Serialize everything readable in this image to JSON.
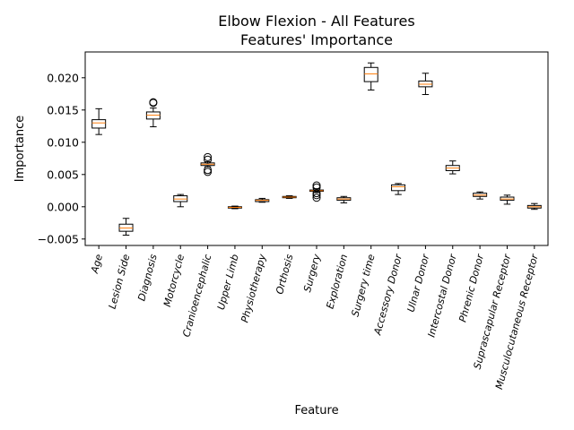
{
  "chart_data": {
    "type": "box",
    "title": "Elbow Flexion - All Features",
    "subtitle": "Features' Importance",
    "xlabel": "Feature",
    "ylabel": "Importance",
    "ylim": [
      -0.006,
      0.024
    ],
    "yticks": [
      -0.005,
      0.0,
      0.005,
      0.01,
      0.015,
      0.02
    ],
    "ytick_labels": [
      "−0.005",
      "0.000",
      "0.005",
      "0.010",
      "0.015",
      "0.020"
    ],
    "grid": false,
    "box_color": "#000000",
    "median_color": "#ff7f0e",
    "categories": [
      "Age",
      "Lesion Side",
      "Diagnosis",
      "Motorcycle",
      "Cranioencephalic",
      "Upper Limb",
      "Physiotherapy",
      "Orthosis",
      "Surgery",
      "Exploration",
      "Surgery time",
      "Accessory Donor",
      "Ulnar Donor",
      "Intercostal Donor",
      "Phrenic Donor",
      "Suprascapular Receptor",
      "Musculocutaneous Receptor"
    ],
    "boxes": [
      {
        "whisker_low": 0.0112,
        "q1": 0.0122,
        "median": 0.013,
        "q3": 0.0135,
        "whisker_high": 0.0152,
        "outliers": []
      },
      {
        "whisker_low": -0.0044,
        "q1": -0.0038,
        "median": -0.0033,
        "q3": -0.0027,
        "whisker_high": -0.0018,
        "outliers": []
      },
      {
        "whisker_low": 0.0124,
        "q1": 0.0136,
        "median": 0.0142,
        "q3": 0.0147,
        "whisker_high": 0.0153,
        "outliers": [
          0.0161,
          0.0162
        ]
      },
      {
        "whisker_low": 0.0,
        "q1": 0.0008,
        "median": 0.0012,
        "q3": 0.0017,
        "whisker_high": 0.0019,
        "outliers": []
      },
      {
        "whisker_low": 0.0062,
        "q1": 0.0064,
        "median": 0.0066,
        "q3": 0.0068,
        "whisker_high": 0.007,
        "outliers": [
          0.0054,
          0.0057,
          0.0073,
          0.0077
        ]
      },
      {
        "whisker_low": -0.0003,
        "q1": -0.0002,
        "median": -0.0001,
        "q3": 0.0,
        "whisker_high": 0.0001,
        "outliers": []
      },
      {
        "whisker_low": 0.0007,
        "q1": 0.0008,
        "median": 0.001,
        "q3": 0.0011,
        "whisker_high": 0.0013,
        "outliers": []
      },
      {
        "whisker_low": 0.0013,
        "q1": 0.0014,
        "median": 0.0015,
        "q3": 0.0016,
        "whisker_high": 0.0017,
        "outliers": []
      },
      {
        "whisker_low": 0.0022,
        "q1": 0.0024,
        "median": 0.0025,
        "q3": 0.0026,
        "whisker_high": 0.0028,
        "outliers": [
          0.0014,
          0.0018,
          0.0021,
          0.003,
          0.0033
        ]
      },
      {
        "whisker_low": 0.0006,
        "q1": 0.001,
        "median": 0.0012,
        "q3": 0.0014,
        "whisker_high": 0.0016,
        "outliers": []
      },
      {
        "whisker_low": 0.0181,
        "q1": 0.0194,
        "median": 0.0206,
        "q3": 0.0216,
        "whisker_high": 0.0223,
        "outliers": []
      },
      {
        "whisker_low": 0.0019,
        "q1": 0.0025,
        "median": 0.0031,
        "q3": 0.0034,
        "whisker_high": 0.0036,
        "outliers": []
      },
      {
        "whisker_low": 0.0174,
        "q1": 0.0186,
        "median": 0.019,
        "q3": 0.0195,
        "whisker_high": 0.0207,
        "outliers": []
      },
      {
        "whisker_low": 0.0051,
        "q1": 0.0056,
        "median": 0.006,
        "q3": 0.0064,
        "whisker_high": 0.0071,
        "outliers": []
      },
      {
        "whisker_low": 0.0012,
        "q1": 0.0016,
        "median": 0.0018,
        "q3": 0.0021,
        "whisker_high": 0.0023,
        "outliers": []
      },
      {
        "whisker_low": 0.0004,
        "q1": 0.001,
        "median": 0.0012,
        "q3": 0.0015,
        "whisker_high": 0.0018,
        "outliers": []
      },
      {
        "whisker_low": -0.0004,
        "q1": -0.0002,
        "median": 0.0,
        "q3": 0.0002,
        "whisker_high": 0.0005,
        "outliers": []
      }
    ]
  }
}
